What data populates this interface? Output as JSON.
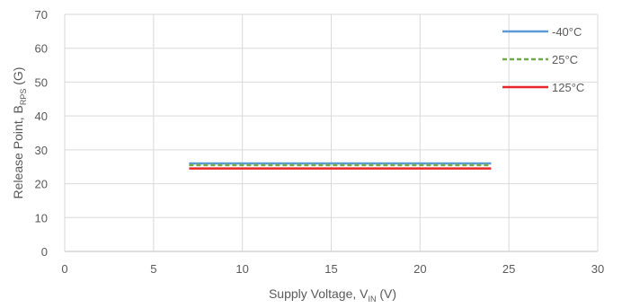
{
  "chart_data": {
    "type": "line",
    "title": "",
    "xlabel": {
      "main": "Supply Voltage, V",
      "sub": "IN",
      "suffix": " (V)"
    },
    "ylabel": {
      "main": "Release Point, B",
      "sub": "RPS",
      "suffix": " (G)"
    },
    "xlim": [
      0,
      30
    ],
    "ylim": [
      0,
      70
    ],
    "xticks": [
      0,
      5,
      10,
      15,
      20,
      25,
      30
    ],
    "yticks": [
      0,
      10,
      20,
      30,
      40,
      50,
      60,
      70
    ],
    "grid": true,
    "legend_position": "top-right",
    "series": [
      {
        "name": "-40°C",
        "color": "#5b9bd5",
        "dash": "solid",
        "x": [
          7,
          24
        ],
        "y": [
          26.0,
          26.0
        ]
      },
      {
        "name": "25°C",
        "color": "#70ad47",
        "dash": "dashed",
        "x": [
          7,
          24
        ],
        "y": [
          25.5,
          25.5
        ]
      },
      {
        "name": "125°C",
        "color": "#e8262a",
        "dash": "solid",
        "x": [
          7,
          24
        ],
        "y": [
          24.5,
          24.5
        ]
      }
    ]
  }
}
